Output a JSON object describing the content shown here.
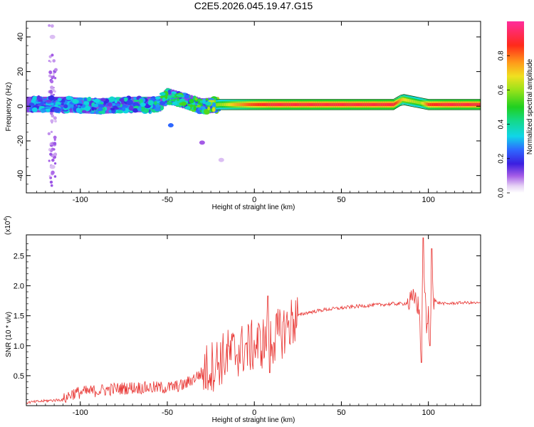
{
  "chart_data": [
    {
      "type": "heatmap",
      "title": "C2E5.2026.045.19.47.G15",
      "xlabel": "Height of straight line (km)",
      "ylabel": "Frequency (Hz)",
      "xlim": [
        -131,
        130
      ],
      "ylim": [
        -50,
        49
      ],
      "xticks": [
        -100,
        -50,
        0,
        50,
        100
      ],
      "xtick_labels": [
        "-100",
        "-50",
        "0",
        "50",
        "100"
      ],
      "yticks": [
        -40,
        -20,
        0,
        20,
        40
      ],
      "ytick_labels": [
        "-40",
        "-20",
        "0",
        "20",
        "40"
      ],
      "colorbar": {
        "label": "Normalized spectral amplitude",
        "range": [
          0,
          1
        ],
        "ticks": [
          0,
          0.2,
          0.4,
          0.6,
          0.8
        ],
        "tick_labels": [
          "0.0",
          "0.2",
          "0.4",
          "0.6",
          "0.8"
        ]
      },
      "ridge": {
        "description": "dominant frequency band vs height",
        "height_km": [
          -128,
          -110,
          -90,
          -70,
          -55,
          -50,
          -40,
          -30,
          -20,
          -10,
          0,
          10,
          20,
          40,
          60,
          80,
          85,
          95,
          100,
          110,
          128
        ],
        "frequency_hz": [
          1,
          1,
          0,
          1,
          1,
          6,
          3,
          0,
          1,
          1,
          1,
          1,
          1,
          1,
          1,
          1,
          4,
          2,
          1,
          1,
          1
        ],
        "amplitude": [
          0.3,
          0.3,
          0.35,
          0.35,
          0.4,
          0.5,
          0.45,
          0.5,
          0.6,
          0.75,
          0.85,
          0.9,
          0.9,
          0.9,
          0.9,
          0.9,
          0.7,
          0.6,
          0.85,
          0.9,
          0.9
        ]
      },
      "scatter_blobs": [
        {
          "height_km": -116,
          "frequency_hz": 40,
          "amplitude": 0.05
        },
        {
          "height_km": -116,
          "frequency_hz": -35,
          "amplitude": 0.05
        },
        {
          "height_km": -48,
          "frequency_hz": -11,
          "amplitude": 0.25
        },
        {
          "height_km": -30,
          "frequency_hz": -21,
          "amplitude": 0.1
        },
        {
          "height_km": -19,
          "frequency_hz": -31,
          "amplitude": 0.05
        }
      ]
    },
    {
      "type": "line",
      "xlabel": "Height of straight line (km)",
      "ylabel": "SNR (10 * v/v)",
      "y_scale_label": "(x10",
      "y_scale_exponent": "4",
      "xlim": [
        -131,
        130
      ],
      "ylim": [
        0,
        2.85
      ],
      "xticks": [
        -100,
        -50,
        0,
        50,
        100
      ],
      "xtick_labels": [
        "-100",
        "-50",
        "0",
        "50",
        "100"
      ],
      "yticks": [
        0.5,
        1.0,
        1.5,
        2.0,
        2.5
      ],
      "ytick_labels": [
        "0.5",
        "1.0",
        "1.5",
        "2.0",
        "2.5"
      ],
      "color": "#e8322f",
      "series": [
        {
          "name": "SNR",
          "x": [
            -131,
            -120,
            -110,
            -105,
            -100,
            -90,
            -80,
            -70,
            -60,
            -50,
            -45,
            -40,
            -35,
            -30,
            -25,
            -20,
            -15,
            -10,
            -5,
            0,
            5,
            8,
            10,
            15,
            20,
            25,
            30,
            40,
            50,
            60,
            70,
            80,
            85,
            90,
            93,
            95,
            96,
            97,
            98,
            99,
            100,
            101,
            102,
            103,
            105,
            110,
            120,
            130
          ],
          "y": [
            0.05,
            0.08,
            0.1,
            0.2,
            0.22,
            0.25,
            0.28,
            0.3,
            0.3,
            0.3,
            0.32,
            0.35,
            0.45,
            0.55,
            0.65,
            0.75,
            0.85,
            0.9,
            0.95,
            1.0,
            1.05,
            1.1,
            1.1,
            1.2,
            1.35,
            1.5,
            1.55,
            1.6,
            1.63,
            1.66,
            1.68,
            1.7,
            1.7,
            1.72,
            1.8,
            1.5,
            0.7,
            2.8,
            1.9,
            1.2,
            1.5,
            1.0,
            2.62,
            1.8,
            1.72,
            1.7,
            1.72,
            1.71
          ]
        }
      ]
    }
  ]
}
